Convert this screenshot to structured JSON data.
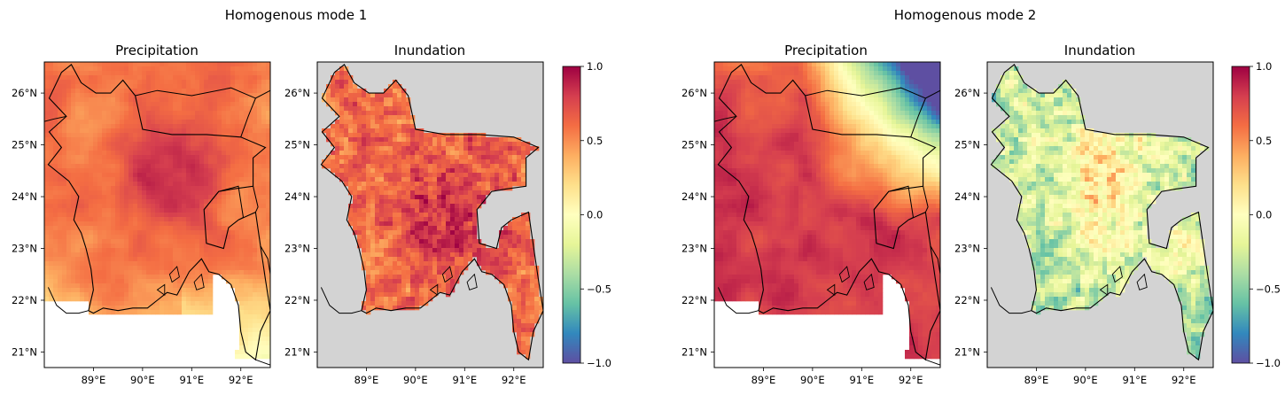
{
  "figure": {
    "groups": [
      {
        "title": "Homogenous mode 1",
        "panels": [
          {
            "title": "Precipitation",
            "field": "mode1_precip"
          },
          {
            "title": "Inundation",
            "field": "mode1_inund"
          }
        ],
        "colorbar": {
          "ticks": [
            "1.0",
            "0.5",
            "0.0",
            "−0.5",
            "−1.0"
          ],
          "range": [
            -1.0,
            1.0
          ],
          "colormap": "Spectral_r"
        }
      },
      {
        "title": "Homogenous mode 2",
        "panels": [
          {
            "title": "Precipitation",
            "field": "mode2_precip"
          },
          {
            "title": "Inundation",
            "field": "mode2_inund"
          }
        ],
        "colorbar": {
          "ticks": [
            "1.0",
            "0.5",
            "0.0",
            "−0.5",
            "−1.0"
          ],
          "range": [
            -1.0,
            1.0
          ],
          "colormap": "Spectral_r"
        }
      }
    ],
    "map": {
      "lon_range": [
        88.0,
        92.6
      ],
      "lat_range": [
        20.7,
        26.6
      ],
      "lon_ticks": [
        "89°E",
        "90°E",
        "91°E",
        "92°E"
      ],
      "lon_tick_values": [
        89,
        90,
        91,
        92
      ],
      "lat_ticks": [
        "26°N",
        "25°N",
        "24°N",
        "23°N",
        "22°N",
        "21°N"
      ],
      "lat_tick_values": [
        26,
        25,
        24,
        23,
        22,
        21
      ],
      "ocean_color_inundation": "#d3d3d3",
      "boundary_color": "#000000"
    },
    "colors": {
      "spectral_r": [
        "#5e4fa2",
        "#3288bd",
        "#66c2a5",
        "#abdda4",
        "#e6f598",
        "#ffffbf",
        "#fee08b",
        "#fdae61",
        "#f46d43",
        "#d53e4f",
        "#9e0142"
      ]
    }
  }
}
